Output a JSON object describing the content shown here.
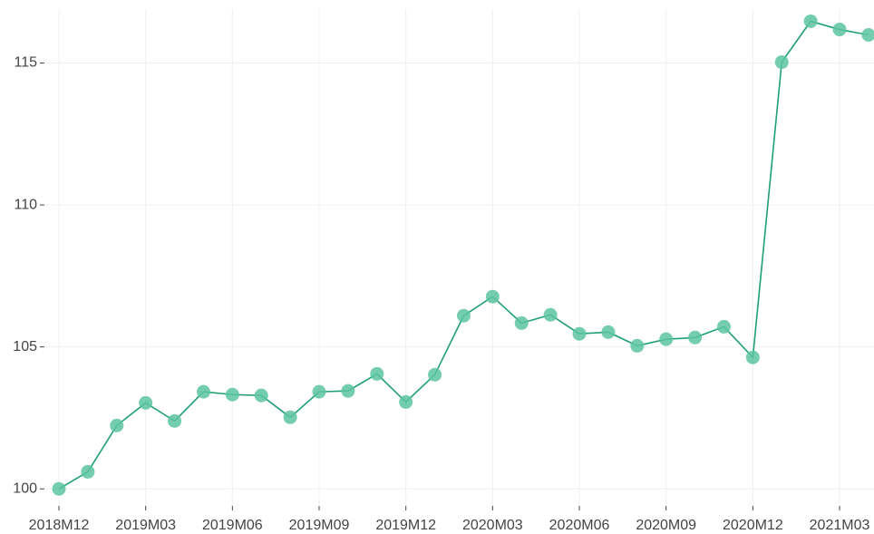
{
  "chart_data": {
    "type": "line",
    "categories": [
      "2018M12",
      null,
      null,
      "2019M03",
      null,
      null,
      "2019M06",
      null,
      null,
      "2019M09",
      null,
      null,
      "2019M12",
      null,
      null,
      "2020M03",
      null,
      null,
      "2020M06",
      null,
      null,
      "2020M09",
      null,
      null,
      "2020M12",
      null,
      null,
      "2021M03",
      null
    ],
    "series": [
      {
        "color": "#1f9e7a",
        "marker_color": "#5cc4a0",
        "values": [
          100,
          100.6,
          102.23,
          103.03,
          102.39,
          103.42,
          103.32,
          103.29,
          102.52,
          103.42,
          103.45,
          104.05,
          103.06,
          104.02,
          106.1,
          106.77,
          105.84,
          106.13,
          105.46,
          105.52,
          105.04,
          105.27,
          105.33,
          105.71,
          104.63,
          115.03,
          116.47,
          116.18,
          115.99
        ]
      }
    ],
    "ylim": [
      99.4,
      116.9
    ],
    "yticks": [
      100,
      105,
      110,
      115
    ],
    "grid": true
  }
}
